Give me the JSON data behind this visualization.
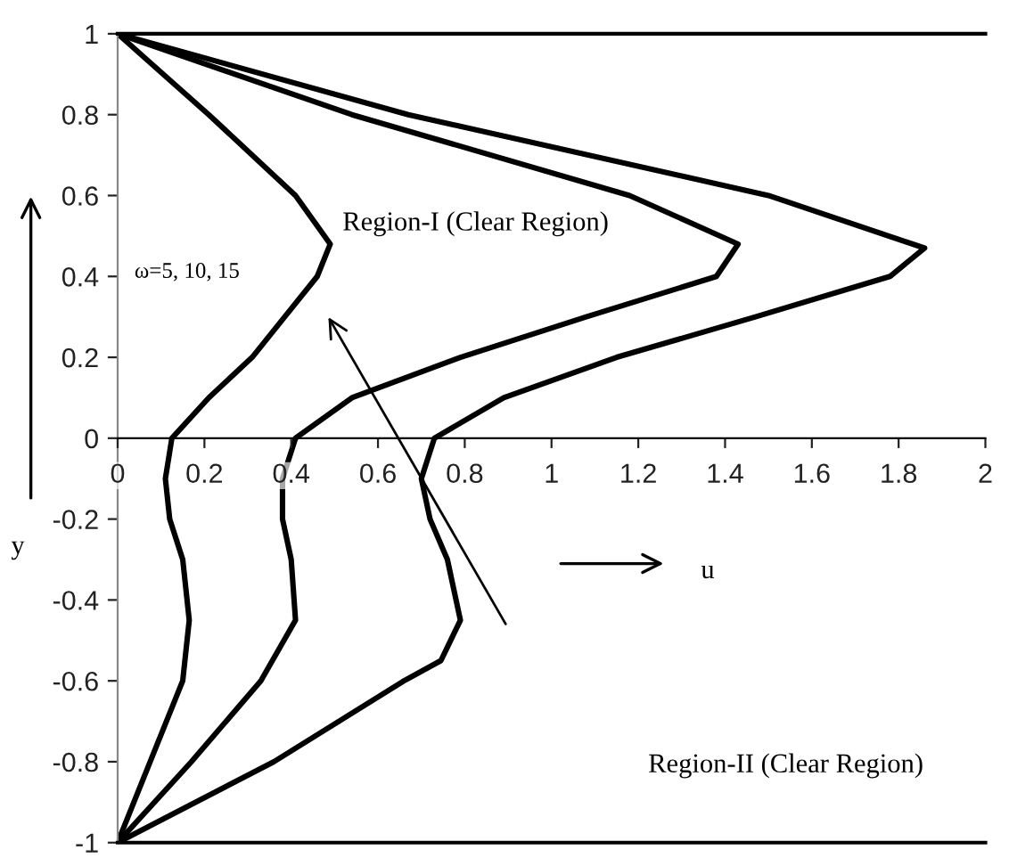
{
  "chart_data": {
    "type": "line",
    "xlabel": "u",
    "ylabel": "y",
    "annotations": [
      "Region-I (Clear Region)",
      "ω=5, 10, 15",
      "Region-II (Clear Region)"
    ],
    "series": [
      {
        "color": "#000000",
        "x": [
          0,
          0.21,
          0.41,
          0.49,
          0.46,
          0.385,
          0.31,
          0.21,
          0.125,
          0.11,
          0.12,
          0.15,
          0.165,
          0.15,
          0.075,
          0
        ],
        "values": [
          1,
          0.8,
          0.6,
          0.48,
          0.4,
          0.3,
          0.2,
          0.1,
          0,
          -0.1,
          -0.2,
          -0.3,
          -0.45,
          -0.6,
          -0.8,
          -1
        ]
      },
      {
        "color": "#000000",
        "x": [
          0,
          0.54,
          1.18,
          1.43,
          1.38,
          1.08,
          0.79,
          0.54,
          0.41,
          0.38,
          0.38,
          0.4,
          0.41,
          0.33,
          0.17,
          0
        ],
        "values": [
          1,
          0.8,
          0.6,
          0.48,
          0.4,
          0.3,
          0.2,
          0.1,
          0,
          -0.1,
          -0.2,
          -0.3,
          -0.45,
          -0.6,
          -0.8,
          -1
        ]
      },
      {
        "color": "#000000",
        "x": [
          0,
          0.67,
          1.5,
          1.86,
          1.78,
          1.47,
          1.15,
          0.89,
          0.73,
          0.7,
          0.72,
          0.76,
          0.79,
          0.745,
          0.66,
          0.36,
          0
        ],
        "values": [
          1,
          0.8,
          0.6,
          0.47,
          0.4,
          0.3,
          0.2,
          0.1,
          0,
          -0.1,
          -0.2,
          -0.3,
          -0.45,
          -0.55,
          -0.6,
          -0.8,
          -1
        ]
      }
    ],
    "xlim": [
      0,
      2
    ],
    "ylim": [
      -1,
      1
    ],
    "xticks": [
      0,
      0.2,
      0.4,
      0.6,
      0.8,
      1,
      1.2,
      1.4,
      1.6,
      1.8,
      2
    ],
    "yticks": [
      -1,
      -0.8,
      -0.6,
      -0.4,
      -0.2,
      0,
      0.2,
      0.4,
      0.6,
      0.8,
      1
    ],
    "grid": false,
    "legend": false,
    "marker": "none",
    "line_style": "solid"
  }
}
